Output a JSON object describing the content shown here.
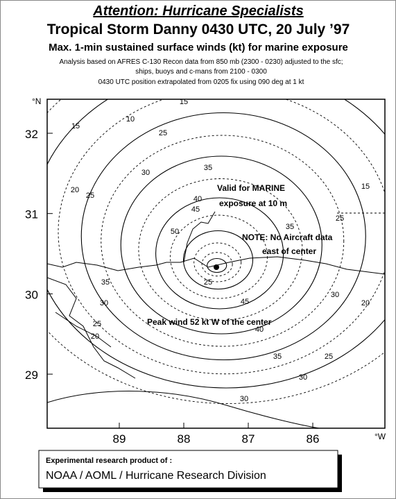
{
  "header": {
    "title": "Attention: Hurricane Specialists",
    "subtitle": "Tropical Storm Danny  0430 UTC, 20 July ’97",
    "line3": "Max. 1-min sustained surface winds (kt) for marine exposure",
    "notes": [
      "Analysis based on  AFRES C-130 Recon data from  850 mb (2300 - 0230) adjusted to the sfc;",
      "ships,  buoys and c-mans from  2100 - 0300",
      "0430 UTC position extrapolated from 0205  fix using 090 deg at 1 kt"
    ]
  },
  "map": {
    "lat_unit": "°N",
    "lon_unit": "°W",
    "lat_ticks": [
      32,
      31,
      30,
      29
    ],
    "lon_ticks": [
      89,
      88,
      87,
      86
    ],
    "annotations": [
      "Valid for MARINE",
      "exposure at 10 m",
      "NOTE: No Aircraft data",
      "east of center",
      "Peak wind 52 kt W of the center"
    ],
    "contour_labels": [
      "15",
      "10",
      "15",
      "20",
      "25",
      "25",
      "30",
      "35",
      "40",
      "45",
      "50",
      "35",
      "25",
      "15",
      "35",
      "30",
      "25",
      "20",
      "45",
      "40",
      "35",
      "30",
      "25",
      "30",
      "30",
      "20",
      "25"
    ]
  },
  "footer": {
    "line1": "Experimental research product of :",
    "line2": "NOAA / AOML / Hurricane Research Division"
  }
}
